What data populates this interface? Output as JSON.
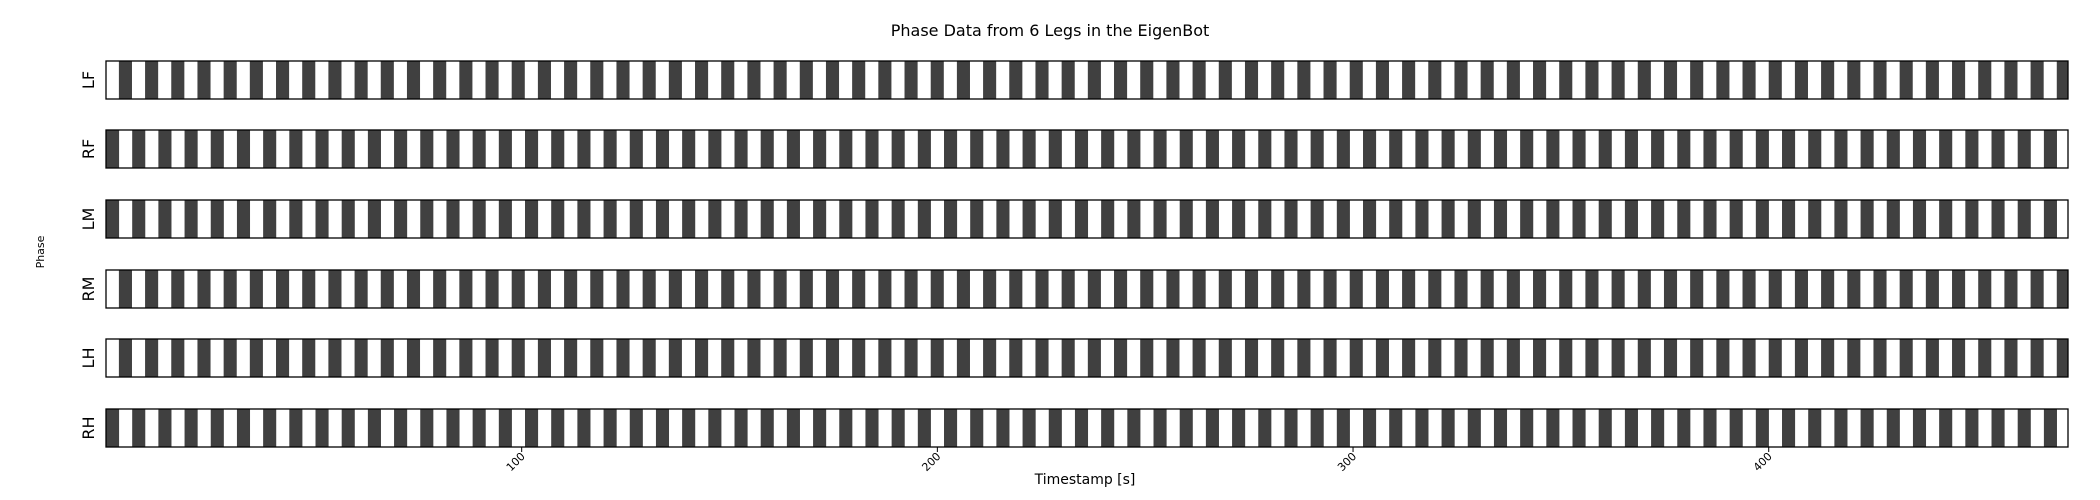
{
  "chart_data": {
    "type": "bar",
    "title": "Phase Data from 6 Legs in the EigenBot",
    "xlabel": "Timestamp [s]",
    "ylabel": "Phase",
    "xlim": [
      0,
      472
    ],
    "xticks": [
      100,
      200,
      300,
      400
    ],
    "xtick_labels": [
      "100",
      "200",
      "300",
      "400"
    ],
    "colors": {
      "stance": "#404040",
      "swing": "#ffffff",
      "frame": "#000000"
    },
    "series": [
      {
        "name": "LF",
        "period": 6.3,
        "offset": 3.1
      },
      {
        "name": "RF",
        "period": 6.3,
        "offset": 0.0
      },
      {
        "name": "LM",
        "period": 6.3,
        "offset": 0.0
      },
      {
        "name": "RM",
        "period": 6.3,
        "offset": 3.1
      },
      {
        "name": "LH",
        "period": 6.3,
        "offset": 3.1
      },
      {
        "name": "RH",
        "period": 6.3,
        "offset": 0.0
      }
    ]
  }
}
